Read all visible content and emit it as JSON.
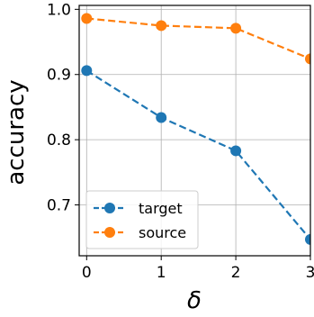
{
  "chart_data": {
    "type": "line",
    "xlabel": "δ",
    "ylabel": "accuracy",
    "x": [
      0,
      1,
      2,
      3
    ],
    "xticks": [
      "0",
      "1",
      "2",
      "3"
    ],
    "yticks": [
      "0.7",
      "0.8",
      "0.9",
      "1.0"
    ],
    "ytick_values": [
      0.7,
      0.8,
      0.9,
      1.0
    ],
    "xlim": [
      -0.1,
      3.0
    ],
    "ylim": [
      0.622,
      1.006
    ],
    "grid": true,
    "legend_position": "lower-left",
    "series": [
      {
        "name": "target",
        "color": "#1f77b4",
        "linestyle": "dashed",
        "marker": "circle",
        "values": [
          0.906,
          0.834,
          0.783,
          0.647
        ]
      },
      {
        "name": "source",
        "color": "#ff7f0e",
        "linestyle": "dashed",
        "marker": "circle",
        "values": [
          0.986,
          0.975,
          0.971,
          0.924
        ]
      }
    ]
  }
}
